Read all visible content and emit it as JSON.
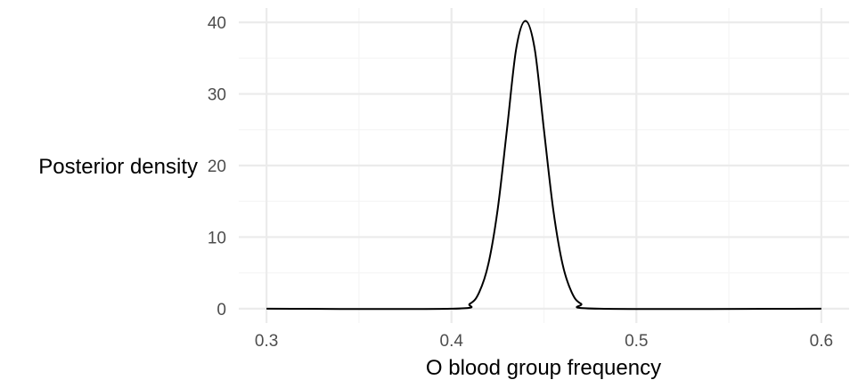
{
  "chart_data": {
    "type": "line",
    "title": "",
    "xlabel": "O blood group frequency",
    "ylabel": "Posterior density",
    "xlim": [
      0.285,
      0.615
    ],
    "ylim": [
      -2.0,
      42.0
    ],
    "grid": true,
    "legend": "none",
    "x_ticks": [
      0.3,
      0.4,
      0.5,
      0.6
    ],
    "x_tick_labels": [
      "0.3",
      "0.4",
      "0.5",
      "0.6"
    ],
    "y_ticks": [
      0,
      10,
      20,
      30,
      40
    ],
    "y_tick_labels": [
      "0",
      "10",
      "20",
      "30",
      "40"
    ],
    "series": [
      {
        "x": [
          0.3,
          0.4,
          0.41,
          0.415,
          0.42,
          0.425,
          0.43,
          0.435,
          0.44,
          0.445,
          0.45,
          0.455,
          0.46,
          0.465,
          0.47,
          0.48,
          0.6
        ],
        "y": [
          0,
          0.0,
          0.7,
          2.3,
          6.3,
          13.9,
          25.0,
          36.3,
          40.2,
          36.3,
          25.0,
          13.9,
          6.3,
          2.3,
          0.7,
          0.0,
          0
        ],
        "color": "#000000"
      }
    ]
  },
  "colors": {
    "grid_major": "#ebebeb",
    "grid_minor": "#f5f5f5",
    "line": "#000000",
    "tick_text": "#4d4d4d"
  }
}
